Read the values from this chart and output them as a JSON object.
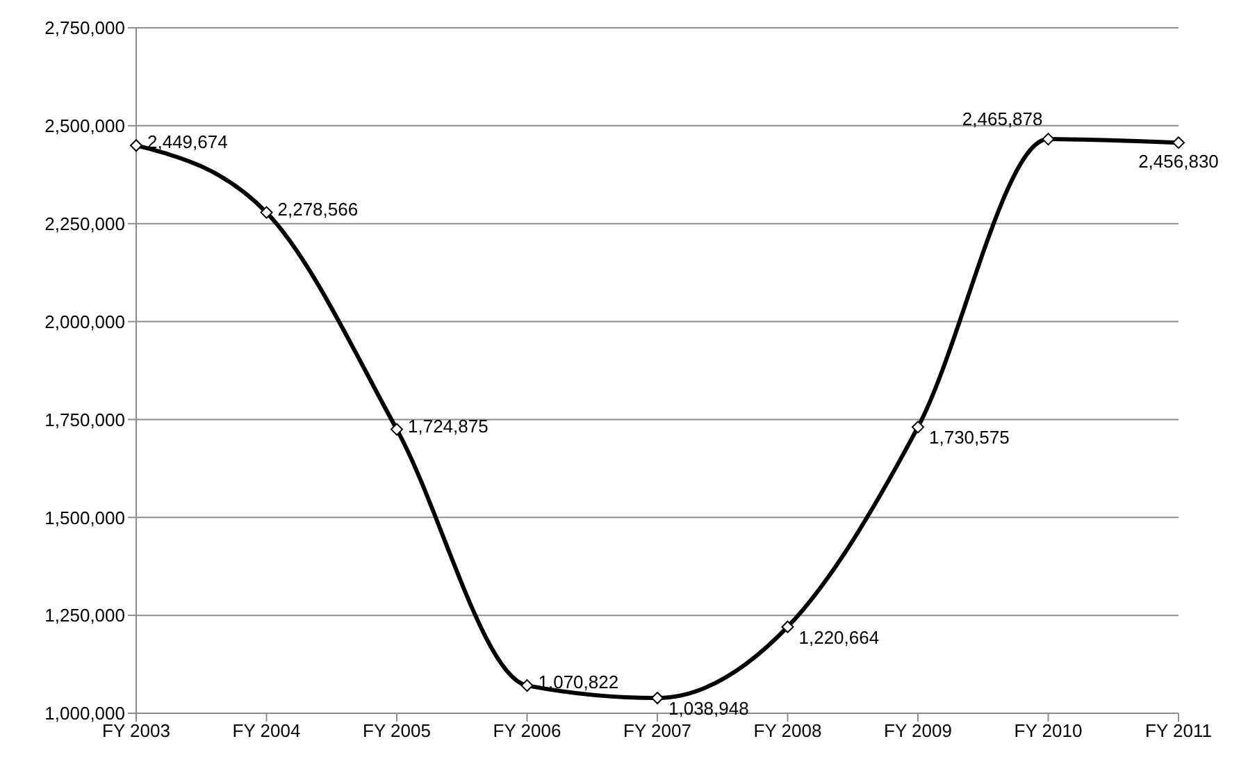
{
  "chart_data": {
    "type": "line",
    "categories": [
      "FY 2003",
      "FY 2004",
      "FY 2005",
      "FY 2006",
      "FY 2007",
      "FY 2008",
      "FY 2009",
      "FY 2010",
      "FY 2011"
    ],
    "series": [
      {
        "color": "#000000",
        "values": [
          2449674,
          2278566,
          1724875,
          1070822,
          1038948,
          1220664,
          1730575,
          2465878,
          2456830
        ],
        "value_labels": [
          "2,449,674",
          "2,278,566",
          "1,724,875",
          "1,070,822",
          "1,038,948",
          "1,220,664",
          "1,730,575",
          "2,465,878",
          "2,456,830"
        ]
      }
    ],
    "ylim": [
      1000000,
      2750000
    ],
    "yticks": [
      {
        "value": 1000000,
        "label": "1,000,000"
      },
      {
        "value": 1250000,
        "label": "1,250,000"
      },
      {
        "value": 1500000,
        "label": "1,500,000"
      },
      {
        "value": 1750000,
        "label": "1,750,000"
      },
      {
        "value": 2000000,
        "label": "2,000,000"
      },
      {
        "value": 2250000,
        "label": "2,250,000"
      },
      {
        "value": 2500000,
        "label": "2,500,000"
      },
      {
        "value": 2750000,
        "label": "2,750,000"
      }
    ],
    "grid": "y",
    "marker": "diamond",
    "line_style": "solid"
  }
}
